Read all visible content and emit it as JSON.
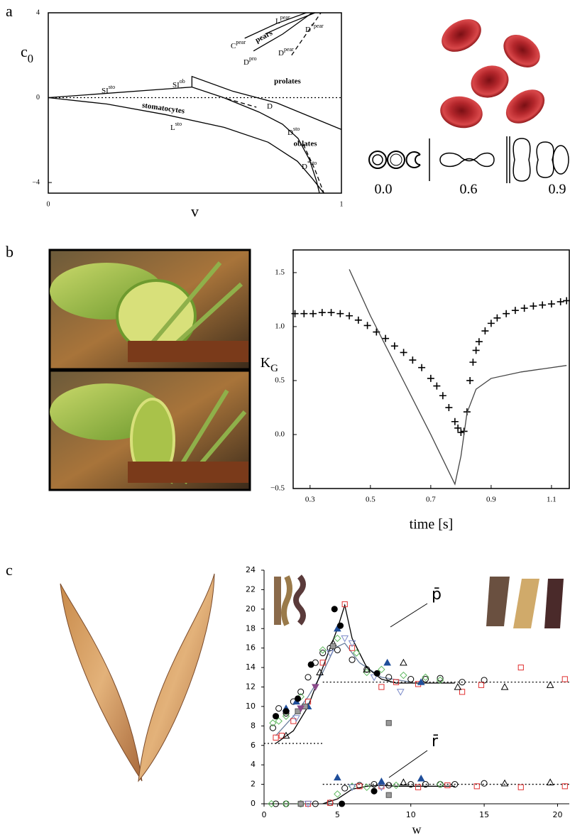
{
  "panel_labels": [
    "a",
    "b",
    "c"
  ],
  "shape_sequence_labels": [
    "0.0",
    "0.6",
    "0.9"
  ],
  "chart_data": [
    {
      "type": "line",
      "xlabel": "v",
      "ylabel": "c",
      "ylabel_sub": "0",
      "xlim": [
        0,
        1
      ],
      "ylim": [
        -4.5,
        4
      ],
      "xticks": [
        0,
        1
      ],
      "yticks": [
        {
          "value": -4,
          "label": "−4"
        },
        0,
        4
      ],
      "region_labels": [
        "pears",
        "prolates",
        "stomatocytes",
        "oblates"
      ],
      "curve_labels": [
        {
          "text": "L",
          "sup": "pear"
        },
        {
          "text": "C",
          "sup": "pear"
        },
        {
          "text": "D",
          "sup": "pro"
        },
        {
          "text": "D",
          "sup": "pear"
        },
        {
          "text": "D",
          "sup": "*pear"
        },
        {
          "text": "SI",
          "sup": "sto"
        },
        {
          "text": "SI",
          "sup": "ob"
        },
        {
          "text": "D"
        },
        {
          "text": "D",
          "sup": "sto"
        },
        {
          "text": "L",
          "sup": "sto"
        },
        {
          "text": "D",
          "sup": "*sto"
        }
      ],
      "series": [
        {
          "color": "#000",
          "dash": "dotted",
          "x": [
            0,
            1
          ],
          "values": [
            0,
            0
          ]
        },
        {
          "color": "#000",
          "x": [
            0,
            0.49,
            0.49,
            0.63,
            0.78,
            1
          ],
          "values": [
            0,
            0.5,
            1.0,
            0.3,
            -0.25,
            -1.5
          ]
        },
        {
          "color": "#000",
          "x": [
            0.49,
            0.598,
            0.719,
            0.799,
            0.852,
            0.891,
            0.915,
            0.925
          ],
          "values": [
            0.5,
            0,
            -0.68,
            -1.25,
            -1.92,
            -2.92,
            -3.93,
            -4.5
          ]
        },
        {
          "color": "#000",
          "x": [
            0,
            0.2,
            0.4,
            0.6,
            0.75,
            0.85,
            0.9,
            0.94
          ],
          "values": [
            0,
            -0.3,
            -0.8,
            -1.4,
            -2.1,
            -3.0,
            -3.8,
            -4.5
          ]
        },
        {
          "color": "#000",
          "dash": "dashed",
          "x": [
            0.61,
            0.71
          ],
          "values": [
            -0.05,
            -0.45
          ]
        },
        {
          "color": "#000",
          "dash": "dashed",
          "x": [
            0.87,
            0.91,
            0.94
          ],
          "values": [
            -2.2,
            -3.4,
            -4.5
          ]
        },
        {
          "color": "#000",
          "x": [
            0.74,
            0.82,
            0.91
          ],
          "values": [
            3.0,
            3.5,
            4
          ]
        },
        {
          "color": "#000",
          "x": [
            0.67,
            0.78,
            0.88
          ],
          "values": [
            2.8,
            3.5,
            4
          ]
        },
        {
          "color": "#000",
          "x": [
            0.7,
            0.8,
            0.9
          ],
          "values": [
            2.2,
            3.0,
            4
          ]
        },
        {
          "color": "#000",
          "dash": "dashed",
          "x": [
            0.83,
            0.88,
            0.93
          ],
          "values": [
            2.0,
            3.0,
            4
          ]
        }
      ]
    },
    {
      "type": "scatter",
      "xlabel": "time [s]",
      "ylabel": "K",
      "ylabel_sub": "G",
      "xlim": [
        0.244,
        1.159
      ],
      "ylim": [
        -0.5,
        1.71
      ],
      "xticks": [
        0.3,
        0.5,
        0.7,
        0.9,
        1.1
      ],
      "yticks": [
        {
          "value": -0.5,
          "label": "−0.5"
        },
        {
          "value": 0,
          "label": "0.0"
        },
        0.5,
        {
          "value": 1,
          "label": "1.0"
        },
        1.5
      ],
      "series": [
        {
          "color": "#000",
          "marker": "plus",
          "x": [
            0.25,
            0.28,
            0.31,
            0.34,
            0.37,
            0.4,
            0.43,
            0.46,
            0.49,
            0.52,
            0.55,
            0.58,
            0.61,
            0.64,
            0.67,
            0.7,
            0.72,
            0.74,
            0.76,
            0.78,
            0.79,
            0.8,
            0.81,
            0.82,
            0.83,
            0.84,
            0.85,
            0.86,
            0.88,
            0.9,
            0.92,
            0.95,
            0.98,
            1.01,
            1.04,
            1.07,
            1.1,
            1.13,
            1.15
          ],
          "values": [
            1.12,
            1.12,
            1.12,
            1.13,
            1.13,
            1.12,
            1.1,
            1.06,
            1.01,
            0.95,
            0.89,
            0.82,
            0.76,
            0.69,
            0.62,
            0.52,
            0.45,
            0.36,
            0.25,
            0.12,
            0.06,
            0.02,
            0.03,
            0.21,
            0.5,
            0.67,
            0.78,
            0.86,
            0.96,
            1.03,
            1.08,
            1.12,
            1.15,
            1.17,
            1.19,
            1.2,
            1.21,
            1.23,
            1.24
          ]
        },
        {
          "color": "#444",
          "x": [
            0.43,
            0.5,
            0.6,
            0.7,
            0.78,
            0.8,
            0.82,
            0.85,
            0.9,
            1.0,
            1.15
          ],
          "values": [
            1.53,
            1.1,
            0.55,
            0.0,
            -0.46,
            -0.2,
            0.2,
            0.42,
            0.52,
            0.58,
            0.64
          ]
        }
      ]
    },
    {
      "type": "scatter",
      "xlabel": "w",
      "annotations": [
        "p̄",
        "r̄"
      ],
      "xlim": [
        0,
        20.8
      ],
      "ylim": [
        0,
        24
      ],
      "xticks": [
        0,
        5,
        10,
        15,
        20
      ],
      "yticks": [
        0,
        2,
        4,
        6,
        8,
        10,
        12,
        14,
        16,
        18,
        20,
        22,
        24
      ],
      "series": [
        {
          "color": "#000",
          "dash": "dotted",
          "x": [
            4,
            20.8
          ],
          "values": [
            12.5,
            12.5
          ]
        },
        {
          "color": "#000",
          "dash": "dotted",
          "x": [
            0,
            4
          ],
          "values": [
            6.2,
            6.2
          ]
        },
        {
          "color": "#000",
          "dash": "dotted",
          "x": [
            4,
            20.8
          ],
          "values": [
            2,
            2
          ]
        },
        {
          "color": "#6b7f9e",
          "x": [
            0.8,
            2,
            3,
            4,
            4.8,
            5.5,
            6.5,
            8,
            10
          ],
          "values": [
            7,
            9,
            11,
            13.5,
            16,
            16.5,
            14.5,
            13,
            12.5
          ]
        },
        {
          "color": "#000",
          "x": [
            0.8,
            2,
            3,
            4,
            5,
            5.5,
            6,
            7,
            8,
            9,
            10,
            13
          ],
          "values": [
            6.2,
            7.5,
            10,
            14,
            18,
            20.4,
            17,
            14,
            12.8,
            12.4,
            12.4,
            12.4
          ]
        },
        {
          "color": "#000",
          "x": [
            4,
            5,
            6,
            7,
            8,
            9,
            10,
            13
          ],
          "values": [
            0,
            0.5,
            1.5,
            1.8,
            1.9,
            1.8,
            1.8,
            1.8
          ]
        },
        {
          "color": "#000",
          "marker": "circle-open",
          "x": [
            0.6,
            1,
            1.5,
            2,
            2.5,
            3,
            3.5,
            4,
            4.5,
            5,
            6,
            7,
            8.5,
            10,
            11,
            12,
            13.5,
            15,
            0.8,
            1.5,
            2.5,
            3.5,
            4.5,
            5.5,
            6.5,
            7.5,
            8.5,
            10,
            11,
            12,
            13,
            15
          ],
          "values": [
            7.8,
            9.8,
            9.3,
            10.5,
            11.5,
            13,
            14.5,
            15.5,
            16,
            15.8,
            14.8,
            13.8,
            13,
            12.8,
            12.8,
            12.9,
            12.5,
            12.7,
            0,
            0,
            0,
            0,
            0.1,
            1.6,
            1.9,
            2,
            1.9,
            2,
            2,
            2,
            2,
            2.1
          ]
        },
        {
          "color": "#e03030",
          "marker": "square-open",
          "x": [
            0.8,
            1.2,
            2,
            3,
            4,
            5.5,
            6,
            8,
            9,
            10.5,
            13.5,
            14.8,
            17.5,
            20.5,
            3,
            4.5,
            6.5,
            8,
            10.5,
            12.5,
            14.5,
            17.5,
            20.5
          ],
          "values": [
            6.8,
            7,
            8.5,
            10.5,
            14.5,
            20.5,
            16,
            12,
            12.5,
            12.3,
            11.5,
            12.2,
            14,
            12.8,
            0,
            0.1,
            1.8,
            1.8,
            1.7,
            1.9,
            1.8,
            1.7,
            1.8
          ]
        },
        {
          "color": "#5cb85c",
          "marker": "diamond-open",
          "x": [
            0.6,
            1,
            1.5,
            2.5,
            4,
            5,
            6.3,
            7,
            8,
            9.5,
            11,
            12,
            0.5,
            1.5,
            2.5,
            5,
            6,
            7,
            9,
            12
          ],
          "values": [
            8.3,
            8.5,
            9,
            11,
            15.8,
            17,
            15.5,
            13.5,
            13.8,
            13.2,
            13,
            12.7,
            0,
            0,
            0,
            1,
            1.8,
            1.7,
            1.9,
            2
          ]
        },
        {
          "color": "#7a89c8",
          "marker": "triangle-down-open",
          "x": [
            2.2,
            4.5,
            5.5,
            6,
            7.5,
            9.3,
            3,
            6,
            8
          ],
          "values": [
            8.8,
            15.5,
            17,
            16.5,
            13,
            11.5,
            0,
            1.7,
            1.7
          ]
        },
        {
          "color": "#000",
          "marker": "triangle-open",
          "x": [
            1.5,
            3.8,
            4.7,
            7,
            9.5,
            13.2,
            16.4,
            19.5,
            9.5,
            16.4,
            19.5
          ],
          "values": [
            7,
            13.5,
            16.5,
            13.8,
            14.5,
            12,
            12,
            12.2,
            2.2,
            2.1,
            2.2
          ]
        },
        {
          "color": "#1f4e9a",
          "marker": "triangle",
          "x": [
            1.5,
            2.2,
            3,
            5,
            8.4,
            10.7,
            5,
            8,
            10.7
          ],
          "values": [
            9.8,
            10.5,
            10,
            18,
            14.5,
            12.5,
            2.7,
            2.3,
            2.6
          ]
        },
        {
          "color": "#999",
          "marker": "square",
          "x": [
            2.3,
            2.8,
            4.7,
            8.5,
            8.5,
            2.5
          ],
          "values": [
            9.5,
            10,
            16.2,
            8.3,
            0.9,
            0
          ]
        },
        {
          "color": "#8a4a8a",
          "marker": "triangle-down",
          "x": [
            2.5,
            3.5
          ],
          "values": [
            9.8,
            12
          ]
        },
        {
          "color": "#000",
          "marker": "circle",
          "x": [
            0.8,
            1.5,
            2.3,
            3.2,
            4.8,
            5.2,
            7.7,
            7.5,
            5.3
          ],
          "values": [
            9,
            9.5,
            10.8,
            14.3,
            20,
            18.3,
            13.4,
            1.3,
            0
          ]
        }
      ]
    }
  ]
}
